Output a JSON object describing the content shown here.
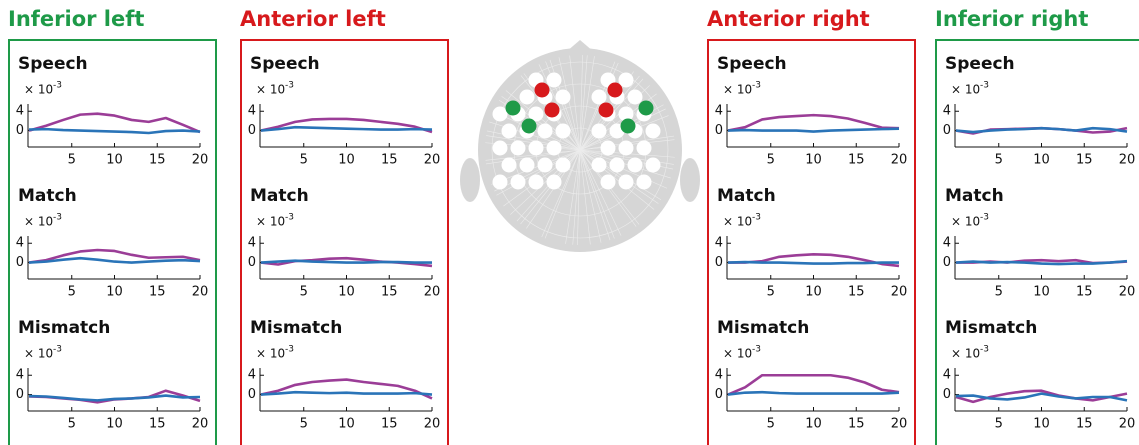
{
  "groups": [
    {
      "title": "Inferior left",
      "color": "#1e9a48",
      "charts": [
        {
          "type": "line",
          "title": "Speech",
          "y_multiplier": "× 10",
          "y_multiplier_exponent": "-3",
          "x": [
            0,
            2,
            4,
            6,
            8,
            10,
            12,
            14,
            16,
            18,
            20
          ],
          "xlim": [
            0,
            20
          ],
          "xticks": [
            5,
            10,
            15,
            20
          ],
          "ylim": [
            -3.4,
            5.5
          ],
          "yticks": [
            0,
            4
          ],
          "series": [
            {
              "color": "#9b3d97",
              "values": [
                0,
                1,
                2.2,
                3.3,
                3.5,
                3.1,
                2.2,
                1.8,
                2.6,
                1.2,
                -0.3
              ]
            },
            {
              "color": "#2a74b8",
              "values": [
                0.2,
                0.3,
                0.1,
                0,
                -0.1,
                -0.2,
                -0.3,
                -0.5,
                -0.1,
                0,
                -0.2
              ]
            }
          ]
        },
        {
          "type": "line",
          "title": "Match",
          "y_multiplier": "× 10",
          "y_multiplier_exponent": "-3",
          "x": [
            0,
            2,
            4,
            6,
            8,
            10,
            12,
            14,
            16,
            18,
            20
          ],
          "xlim": [
            0,
            20
          ],
          "xticks": [
            5,
            10,
            15,
            20
          ],
          "ylim": [
            -3.4,
            5.5
          ],
          "yticks": [
            0,
            4
          ],
          "series": [
            {
              "color": "#9b3d97",
              "values": [
                0,
                0.5,
                1.5,
                2.3,
                2.6,
                2.4,
                1.6,
                1,
                1.1,
                1.2,
                0.5
              ]
            },
            {
              "color": "#2a74b8",
              "values": [
                0,
                0.2,
                0.6,
                0.9,
                0.6,
                0.2,
                0,
                0.2,
                0.4,
                0.5,
                0.3
              ]
            }
          ]
        },
        {
          "type": "line",
          "title": "Mismatch",
          "y_multiplier": "× 10",
          "y_multiplier_exponent": "-3",
          "x": [
            0,
            2,
            4,
            6,
            8,
            10,
            12,
            14,
            16,
            18,
            20
          ],
          "xlim": [
            0,
            20
          ],
          "xticks": [
            5,
            10,
            15,
            20
          ],
          "ylim": [
            -3.4,
            5.5
          ],
          "yticks": [
            0,
            4
          ],
          "series": [
            {
              "color": "#9b3d97",
              "values": [
                -0.4,
                -0.5,
                -0.8,
                -1.1,
                -1.6,
                -1,
                -0.8,
                -0.5,
                0.8,
                -0.2,
                -1.3
              ]
            },
            {
              "color": "#2a74b8",
              "values": [
                -0.3,
                -0.4,
                -0.7,
                -1,
                -1.2,
                -0.9,
                -0.8,
                -0.6,
                -0.2,
                -0.6,
                -0.5
              ]
            }
          ]
        }
      ]
    },
    {
      "title": "Anterior left",
      "color": "#d7191c",
      "charts": [
        {
          "type": "line",
          "title": "Speech",
          "y_multiplier": "× 10",
          "y_multiplier_exponent": "-3",
          "x": [
            0,
            2,
            4,
            6,
            8,
            10,
            12,
            14,
            16,
            18,
            20
          ],
          "xlim": [
            0,
            20
          ],
          "xticks": [
            5,
            10,
            15,
            20
          ],
          "ylim": [
            -3.4,
            5.5
          ],
          "yticks": [
            0,
            4
          ],
          "series": [
            {
              "color": "#9b3d97",
              "values": [
                0,
                0.8,
                1.8,
                2.3,
                2.4,
                2.4,
                2.2,
                1.8,
                1.4,
                0.8,
                -0.3
              ]
            },
            {
              "color": "#2a74b8",
              "values": [
                0,
                0.3,
                0.7,
                0.6,
                0.5,
                0.4,
                0.3,
                0.2,
                0.2,
                0.3,
                0.2
              ]
            }
          ]
        },
        {
          "type": "line",
          "title": "Match",
          "y_multiplier": "× 10",
          "y_multiplier_exponent": "-3",
          "x": [
            0,
            2,
            4,
            6,
            8,
            10,
            12,
            14,
            16,
            18,
            20
          ],
          "xlim": [
            0,
            20
          ],
          "xticks": [
            5,
            10,
            15,
            20
          ],
          "ylim": [
            -3.4,
            5.5
          ],
          "yticks": [
            0,
            4
          ],
          "series": [
            {
              "color": "#9b3d97",
              "values": [
                0,
                -0.4,
                0.3,
                0.5,
                0.8,
                0.9,
                0.6,
                0.2,
                0,
                -0.3,
                -0.7
              ]
            },
            {
              "color": "#2a74b8",
              "values": [
                0,
                0.2,
                0.4,
                0.2,
                0.1,
                0,
                0,
                0.1,
                0.1,
                0,
                0
              ]
            }
          ]
        },
        {
          "type": "line",
          "title": "Mismatch",
          "y_multiplier": "× 10",
          "y_multiplier_exponent": "-3",
          "x": [
            0,
            2,
            4,
            6,
            8,
            10,
            12,
            14,
            16,
            18,
            20
          ],
          "xlim": [
            0,
            20
          ],
          "xticks": [
            5,
            10,
            15,
            20
          ],
          "ylim": [
            -3.4,
            5.5
          ],
          "yticks": [
            0,
            4
          ],
          "series": [
            {
              "color": "#9b3d97",
              "values": [
                0,
                0.8,
                2,
                2.6,
                2.9,
                3.1,
                2.6,
                2.2,
                1.8,
                0.8,
                -0.8
              ]
            },
            {
              "color": "#2a74b8",
              "values": [
                0,
                0.2,
                0.5,
                0.4,
                0.3,
                0.4,
                0.2,
                0.2,
                0.2,
                0.3,
                0
              ]
            }
          ]
        }
      ]
    },
    {
      "title": "Anterior right",
      "color": "#d7191c",
      "charts": [
        {
          "type": "line",
          "title": "Speech",
          "y_multiplier": "× 10",
          "y_multiplier_exponent": "-3",
          "x": [
            0,
            2,
            4,
            6,
            8,
            10,
            12,
            14,
            16,
            18,
            20
          ],
          "xlim": [
            0,
            20
          ],
          "xticks": [
            5,
            10,
            15,
            20
          ],
          "ylim": [
            -3.4,
            5.5
          ],
          "yticks": [
            0,
            4
          ],
          "series": [
            {
              "color": "#9b3d97",
              "values": [
                0,
                0.7,
                2.3,
                2.8,
                3,
                3.2,
                3,
                2.5,
                1.6,
                0.6,
                0.5
              ]
            },
            {
              "color": "#2a74b8",
              "values": [
                0,
                0.1,
                0,
                0,
                0,
                -0.2,
                0,
                0.1,
                0.2,
                0.3,
                0.4
              ]
            }
          ]
        },
        {
          "type": "line",
          "title": "Match",
          "y_multiplier": "× 10",
          "y_multiplier_exponent": "-3",
          "x": [
            0,
            2,
            4,
            6,
            8,
            10,
            12,
            14,
            16,
            18,
            20
          ],
          "xlim": [
            0,
            20
          ],
          "xticks": [
            5,
            10,
            15,
            20
          ],
          "ylim": [
            -3.4,
            5.5
          ],
          "yticks": [
            0,
            4
          ],
          "series": [
            {
              "color": "#9b3d97",
              "values": [
                0,
                0,
                0.3,
                1.2,
                1.5,
                1.7,
                1.6,
                1.2,
                0.5,
                -0.3,
                -0.7
              ]
            },
            {
              "color": "#2a74b8",
              "values": [
                0,
                0.1,
                0,
                0,
                -0.1,
                -0.2,
                -0.2,
                -0.1,
                -0.1,
                0,
                0
              ]
            }
          ]
        },
        {
          "type": "line",
          "title": "Mismatch",
          "y_multiplier": "× 10",
          "y_multiplier_exponent": "-3",
          "x": [
            0,
            2,
            4,
            6,
            8,
            10,
            12,
            14,
            16,
            18,
            20
          ],
          "xlim": [
            0,
            20
          ],
          "xticks": [
            5,
            10,
            15,
            20
          ],
          "ylim": [
            -3.4,
            5.5
          ],
          "yticks": [
            0,
            4
          ],
          "series": [
            {
              "color": "#9b3d97",
              "values": [
                0,
                1.5,
                4,
                4,
                4,
                4,
                4,
                3.5,
                2.5,
                1,
                0.5
              ]
            },
            {
              "color": "#2a74b8",
              "values": [
                0,
                0.4,
                0.5,
                0.3,
                0.2,
                0.2,
                0.2,
                0.2,
                0.2,
                0.2,
                0.4
              ]
            }
          ]
        }
      ]
    },
    {
      "title": "Inferior right",
      "color": "#1e9a48",
      "charts": [
        {
          "type": "line",
          "title": "Speech",
          "y_multiplier": "× 10",
          "y_multiplier_exponent": "-3",
          "x": [
            0,
            2,
            4,
            6,
            8,
            10,
            12,
            14,
            16,
            18,
            20
          ],
          "xlim": [
            0,
            20
          ],
          "xticks": [
            5,
            10,
            15,
            20
          ],
          "ylim": [
            -3.4,
            5.5
          ],
          "yticks": [
            0,
            4
          ],
          "series": [
            {
              "color": "#9b3d97",
              "values": [
                0,
                -0.6,
                0.2,
                0.3,
                0.4,
                0.5,
                0.3,
                0,
                -0.4,
                -0.2,
                0.5
              ]
            },
            {
              "color": "#2a74b8",
              "values": [
                0,
                -0.3,
                0,
                0.2,
                0.3,
                0.5,
                0.3,
                0,
                0.5,
                0.3,
                -0.2
              ]
            }
          ]
        },
        {
          "type": "line",
          "title": "Match",
          "y_multiplier": "× 10",
          "y_multiplier_exponent": "-3",
          "x": [
            0,
            2,
            4,
            6,
            8,
            10,
            12,
            14,
            16,
            18,
            20
          ],
          "xlim": [
            0,
            20
          ],
          "xticks": [
            5,
            10,
            15,
            20
          ],
          "ylim": [
            -3.4,
            5.5
          ],
          "yticks": [
            0,
            4
          ],
          "series": [
            {
              "color": "#9b3d97",
              "values": [
                0,
                0,
                0.2,
                0,
                0.4,
                0.5,
                0.3,
                0.5,
                -0.1,
                0,
                0.2
              ]
            },
            {
              "color": "#2a74b8",
              "values": [
                0,
                0.2,
                0,
                0.1,
                0,
                -0.2,
                -0.3,
                -0.2,
                -0.2,
                0,
                0.3
              ]
            }
          ]
        },
        {
          "type": "line",
          "title": "Mismatch",
          "y_multiplier": "× 10",
          "y_multiplier_exponent": "-3",
          "x": [
            0,
            2,
            4,
            6,
            8,
            10,
            12,
            14,
            16,
            18,
            20
          ],
          "xlim": [
            0,
            20
          ],
          "xticks": [
            5,
            10,
            15,
            20
          ],
          "ylim": [
            -3.4,
            5.5
          ],
          "yticks": [
            0,
            4
          ],
          "series": [
            {
              "color": "#9b3d97",
              "values": [
                -0.5,
                -1.5,
                -0.5,
                0.2,
                0.7,
                0.8,
                -0.2,
                -0.8,
                -1.2,
                -0.5,
                0.2
              ]
            },
            {
              "color": "#2a74b8",
              "values": [
                -0.3,
                -0.2,
                -0.8,
                -1,
                -0.6,
                0.2,
                -0.4,
                -0.8,
                -0.5,
                -0.5,
                -1.2
              ]
            }
          ]
        }
      ]
    }
  ]
}
